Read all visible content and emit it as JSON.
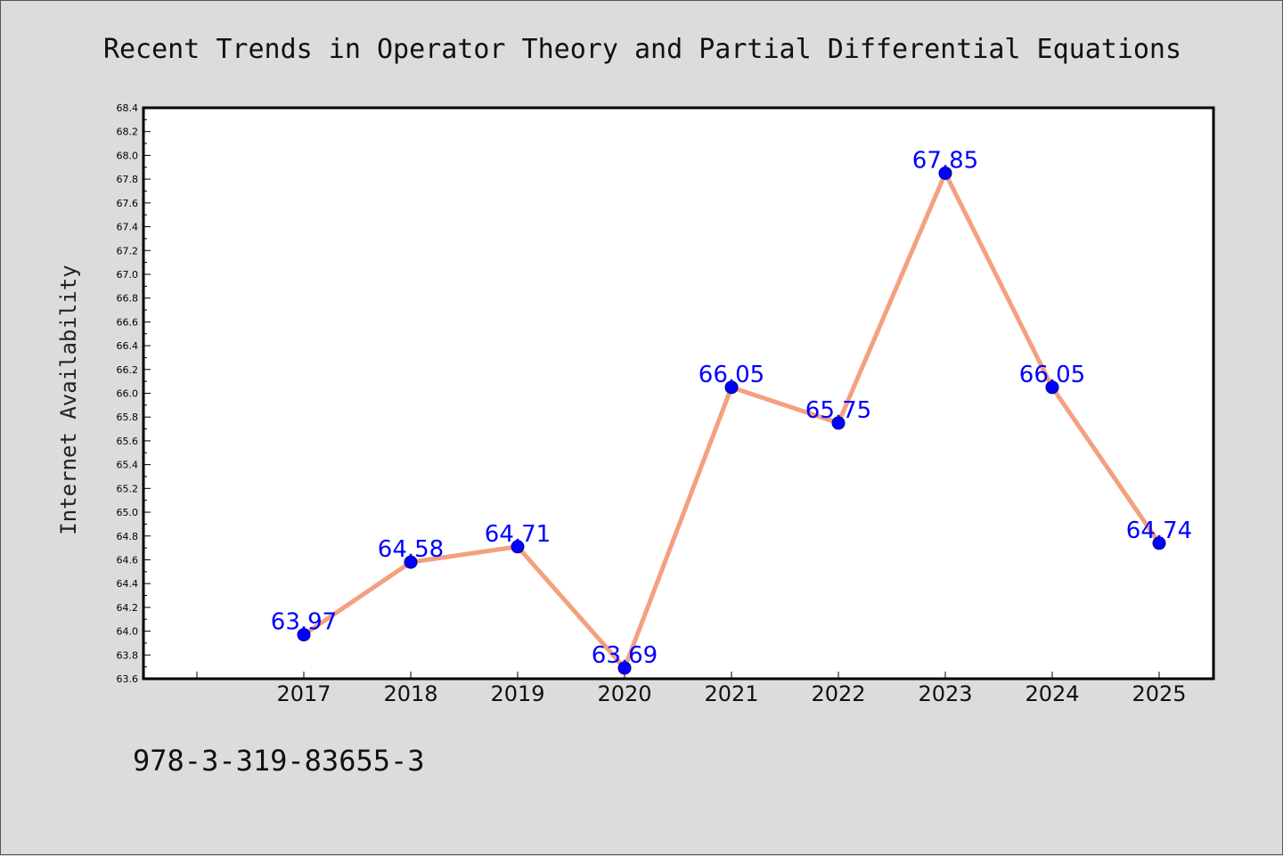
{
  "chart_data": {
    "type": "line",
    "title": "Recent Trends in Operator Theory and Partial Differential Equations",
    "xlabel": "",
    "ylabel": "Internet Availability",
    "categories": [
      "2017",
      "2018",
      "2019",
      "2020",
      "2021",
      "2022",
      "2023",
      "2024",
      "2025"
    ],
    "values": [
      63.97,
      64.58,
      64.71,
      63.69,
      66.05,
      65.75,
      67.85,
      66.05,
      64.74
    ],
    "data_labels": [
      "63.97",
      "64.58",
      "64.71",
      "63.69",
      "66.05",
      "65.75",
      "67.85",
      "66.05",
      "64.74"
    ],
    "ylim": [
      63.6,
      68.4
    ],
    "yticks": [
      "63.6",
      "63.8",
      "64.0",
      "64.2",
      "64.4",
      "64.6",
      "64.8",
      "65.0",
      "65.2",
      "65.4",
      "65.6",
      "65.8",
      "66.0",
      "66.2",
      "66.4",
      "66.6",
      "66.8",
      "67.0",
      "67.2",
      "67.4",
      "67.6",
      "67.8",
      "68.0",
      "68.2",
      "68.4"
    ],
    "grid": false,
    "legend": "none",
    "colors": {
      "line": "#f4a07f",
      "marker": "#0000ff",
      "label": "#0000ff",
      "background": "#dcdcdc",
      "plot_area": "#ffffff"
    }
  },
  "footer_text": "978-3-319-83655-3"
}
